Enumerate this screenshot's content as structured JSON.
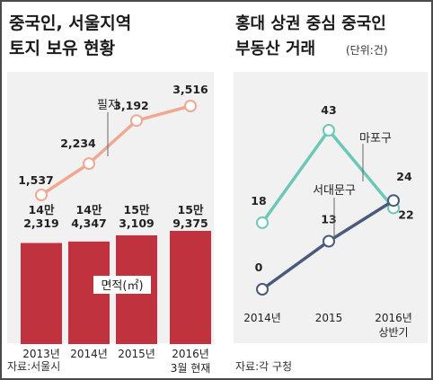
{
  "colors": {
    "area_bg": "#f1f1f1",
    "line_salmon": "#f0a892",
    "bar_red": "#c0323e",
    "line_teal": "#6cc8b6",
    "line_navy": "#4a5a7a",
    "marker_fill": "#ffffff",
    "text": "#222222"
  },
  "chart_data": [
    {
      "type": "bar+line",
      "title_lines": [
        "중국인, 서울지역",
        "토지 보유 현황"
      ],
      "categories": [
        "2013년",
        "2014년",
        "2015년",
        "2016년"
      ],
      "category_sublabels": [
        "",
        "",
        "",
        "3월 현재"
      ],
      "line_series": {
        "name": "필지",
        "values": [
          1537,
          2234,
          3192,
          3516
        ],
        "labels": [
          "1,537",
          "2,234",
          "3,192",
          "3,516"
        ]
      },
      "bar_series": {
        "name": "면적(㎡)",
        "values": [
          142319,
          144347,
          153109,
          159375
        ],
        "label_top": [
          "14만",
          "14만",
          "15만",
          "15만"
        ],
        "label_bottom": [
          "2,319",
          "4,347",
          "3,109",
          "9,375"
        ]
      },
      "source": "자료:서울시"
    },
    {
      "type": "line",
      "title_lines": [
        "홍대 상권 중심 중국인",
        "부동산 거래"
      ],
      "unit": "(단위:건)",
      "categories": [
        "2014년",
        "2015",
        "2016년"
      ],
      "category_sublabels": [
        "",
        "",
        "상반기"
      ],
      "series": [
        {
          "name": "마포구",
          "values": [
            18,
            43,
            22
          ],
          "labels": [
            "18",
            "43",
            "22"
          ]
        },
        {
          "name": "서대문구",
          "values": [
            0,
            13,
            24
          ],
          "labels": [
            "0",
            "13",
            "24"
          ]
        }
      ],
      "source": "자료:각 구청"
    }
  ]
}
